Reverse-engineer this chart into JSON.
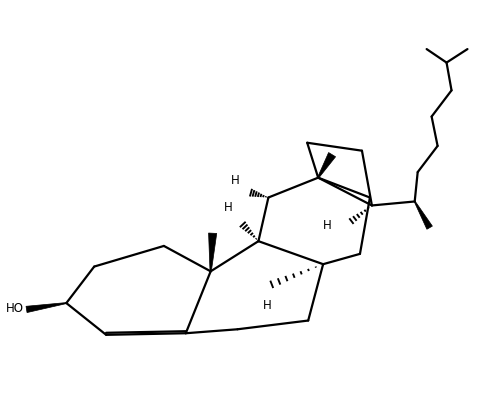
{
  "background_color": "#ffffff",
  "line_color": "#000000",
  "line_width": 1.6,
  "figsize": [
    5.0,
    3.99
  ],
  "dpi": 100,
  "xlim": [
    -0.5,
    10.5
  ],
  "ylim": [
    -2.5,
    4.5
  ]
}
